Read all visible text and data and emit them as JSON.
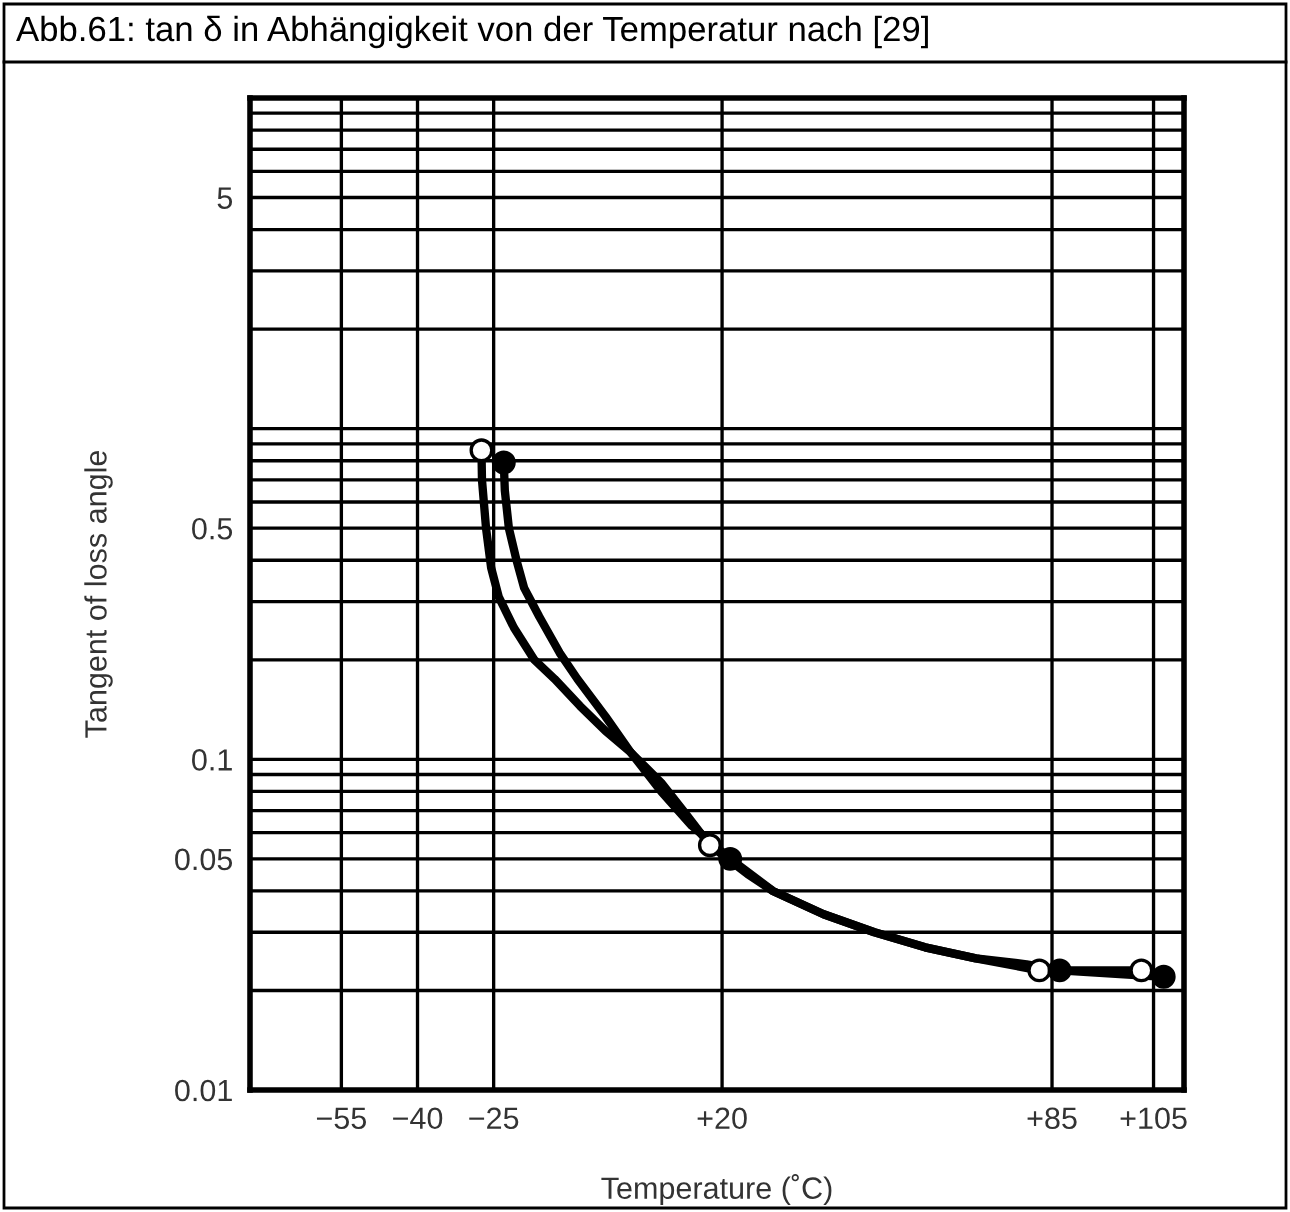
{
  "chart_data": {
    "type": "scatter",
    "title": "Abb.61: tan δ in Abhängigkeit von der Temperatur nach [29]",
    "xlabel": "Temperature (˚C)",
    "ylabel": "Tangent of loss angle",
    "log": "y",
    "grid": true,
    "xlim": [
      -73,
      111
    ],
    "xticks": [
      {
        "value": -55,
        "label": "−55"
      },
      {
        "value": -40,
        "label": "−40"
      },
      {
        "value": -25,
        "label": "−25"
      },
      {
        "value": 20,
        "label": "+20"
      },
      {
        "value": 85,
        "label": "+85"
      },
      {
        "value": 105,
        "label": "+105"
      }
    ],
    "ylim": [
      0.01,
      10
    ],
    "yticks": [
      0.01,
      {
        "value": 0.02,
        "label": null
      },
      {
        "value": 0.03,
        "label": null
      },
      {
        "value": 0.04,
        "label": null
      },
      0.05,
      {
        "value": 0.06,
        "label": null
      },
      {
        "value": 0.07,
        "label": null
      },
      {
        "value": 0.08,
        "label": null
      },
      {
        "value": 0.09,
        "label": null
      },
      0.1,
      {
        "value": 0.2,
        "label": null
      },
      {
        "value": 0.3,
        "label": null
      },
      {
        "value": 0.4,
        "label": null
      },
      0.5,
      {
        "value": 0.6,
        "label": null
      },
      {
        "value": 0.7,
        "label": null
      },
      {
        "value": 0.8,
        "label": null
      },
      {
        "value": 0.9,
        "label": null
      },
      {
        "value": 1,
        "label": null
      },
      {
        "value": 2,
        "label": null
      },
      {
        "value": 3,
        "label": null
      },
      {
        "value": 4,
        "label": null
      },
      5,
      {
        "value": 6,
        "label": null
      },
      {
        "value": 7,
        "label": null
      },
      {
        "value": 8,
        "label": null
      },
      {
        "value": 9,
        "label": null
      }
    ],
    "series": [
      {
        "type": "line",
        "color": "#000000",
        "marker": "none",
        "line_style": "solid",
        "x": [
          -27.4,
          -27.3,
          -26.5,
          -25.5,
          -24,
          -21,
          -17,
          -13,
          -8,
          -3,
          2,
          8,
          13,
          17.6,
          25,
          30,
          40,
          50,
          60,
          70,
          82.5,
          102.6
        ],
        "values": [
          0.86,
          0.7,
          0.5,
          0.38,
          0.31,
          0.25,
          0.2,
          0.175,
          0.145,
          0.122,
          0.105,
          0.085,
          0.068,
          0.055,
          0.045,
          0.04,
          0.034,
          0.03,
          0.027,
          0.025,
          0.023,
          0.023
        ]
      },
      {
        "type": "line",
        "color": "#000000",
        "marker": "none",
        "line_style": "solid",
        "x": [
          -23,
          -22.8,
          -22,
          -20.5,
          -19,
          -16,
          -12,
          -8.5,
          -3,
          2,
          8,
          14,
          21.6,
          30,
          40,
          50,
          60,
          70,
          80,
          86.5,
          107
        ],
        "values": [
          0.79,
          0.65,
          0.5,
          0.4,
          0.33,
          0.27,
          0.21,
          0.175,
          0.135,
          0.105,
          0.08,
          0.063,
          0.05,
          0.04,
          0.034,
          0.03,
          0.027,
          0.025,
          0.024,
          0.023,
          0.022
        ]
      },
      {
        "color": "#ffffff",
        "marker": "circle",
        "x": [
          -27.4,
          17.6,
          82.5,
          102.6
        ],
        "values": [
          0.86,
          0.055,
          0.023,
          0.023
        ]
      },
      {
        "color": "#000000",
        "marker": "circle",
        "x": [
          -23,
          21.6,
          86.5,
          107
        ],
        "values": [
          0.79,
          0.05,
          0.023,
          0.022
        ]
      }
    ]
  }
}
